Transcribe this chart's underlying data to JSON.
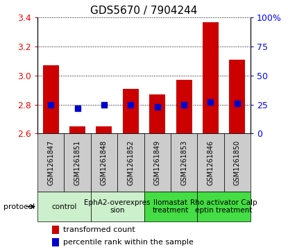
{
  "title": "GDS5670 / 7904244",
  "samples": [
    "GSM1261847",
    "GSM1261851",
    "GSM1261848",
    "GSM1261852",
    "GSM1261849",
    "GSM1261853",
    "GSM1261846",
    "GSM1261850"
  ],
  "transformed_counts": [
    3.07,
    2.65,
    2.65,
    2.91,
    2.87,
    2.97,
    3.37,
    3.11
  ],
  "percentile_ranks": [
    25,
    22,
    25,
    25,
    23,
    25,
    27,
    26
  ],
  "ylim_left": [
    2.6,
    3.4
  ],
  "ylim_right": [
    0,
    100
  ],
  "yticks_left": [
    2.6,
    2.8,
    3.0,
    3.2,
    3.4
  ],
  "yticks_right": [
    0,
    25,
    50,
    75,
    100
  ],
  "yticklabels_right": [
    "0",
    "25",
    "50",
    "75",
    "100%"
  ],
  "bar_color": "#cc0000",
  "dot_color": "#0000cc",
  "baseline": 2.6,
  "protocols": [
    {
      "label": "control",
      "samples": [
        0,
        1
      ],
      "color": "#ccf0cc"
    },
    {
      "label": "EphA2-overexpres\nsion",
      "samples": [
        2,
        3
      ],
      "color": "#ccf0cc"
    },
    {
      "label": "Ilomastat\ntreatment",
      "samples": [
        4,
        5
      ],
      "color": "#44dd44"
    },
    {
      "label": "Rho activator Calp\neptin treatment",
      "samples": [
        6,
        7
      ],
      "color": "#44dd44"
    }
  ],
  "protocol_label": "protocol",
  "legend_bar_label": "transformed count",
  "legend_dot_label": "percentile rank within the sample",
  "bg_color_samples": "#cccccc",
  "grid_linestyle": "dotted",
  "title_fontsize": 11,
  "tick_fontsize": 9,
  "sample_fontsize": 7,
  "proto_fontsize": 7.5,
  "legend_fontsize": 8
}
